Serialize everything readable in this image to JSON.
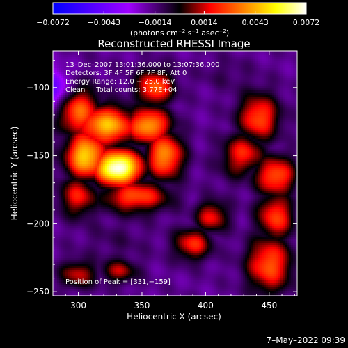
{
  "chart_data": {
    "type": "heatmap",
    "title": "Reconstructed RHESSI Image",
    "xlabel": "Heliocentric X (arcsec)",
    "ylabel": "Heliocentric Y (arcsec)",
    "xlim": [
      280,
      472
    ],
    "ylim": [
      -253,
      -73
    ],
    "x_ticks": [
      300,
      350,
      400,
      450
    ],
    "x_tick_labels": [
      "300",
      "350",
      "400",
      "450"
    ],
    "y_ticks": [
      -100,
      -150,
      -200,
      -250
    ],
    "y_tick_labels": [
      "−100",
      "−150",
      "−200",
      "−250"
    ],
    "colorbar": {
      "range": [
        -0.0072,
        0.0072
      ],
      "colors": [
        "#0000ff",
        "#a000ff",
        "#000000",
        "#ff0000",
        "#ff8000",
        "#ffff00",
        "#ffffff"
      ],
      "stops": [
        0,
        0.3,
        0.5,
        0.62,
        0.75,
        0.88,
        1
      ],
      "ticks": [
        -0.0072,
        -0.0043,
        -0.0014,
        0.0014,
        0.0043,
        0.0072
      ],
      "tick_labels": [
        "−0.0072",
        "−0.0043",
        "−0.0014",
        "0.0014",
        "0.0043",
        "0.0072"
      ],
      "units_parts": [
        "(photons cm",
        "−2",
        " s",
        "−1",
        " asec",
        "−2",
        ")"
      ]
    },
    "annotations": [
      "13–Dec–2007 13:01:36.000 to 13:07:36.000",
      "Detectors: 3F 4F 5F 6F 7F 8F, Att 0",
      "Energy Range: 12.0 − 25.0 keV",
      "Clean     Total counts: 3.77E+04"
    ],
    "peak_label": "Position of Peak = [331,−159]",
    "peak": [
      331,
      -159
    ],
    "background": {
      "value": -0.0016,
      "noise": 0.0004
    },
    "sources": [
      {
        "x": 331,
        "y": -159,
        "value": 0.0075,
        "sx": 13,
        "sy": 9
      },
      {
        "x": 306,
        "y": -150,
        "value": 0.005,
        "sx": 11,
        "sy": 12
      },
      {
        "x": 322,
        "y": -128,
        "value": 0.0045,
        "sx": 16,
        "sy": 10
      },
      {
        "x": 355,
        "y": -128,
        "value": 0.0042,
        "sx": 12,
        "sy": 9
      },
      {
        "x": 368,
        "y": -150,
        "value": 0.0038,
        "sx": 10,
        "sy": 12
      },
      {
        "x": 300,
        "y": -118,
        "value": 0.0032,
        "sx": 12,
        "sy": 12
      },
      {
        "x": 360,
        "y": -100,
        "value": 0.003,
        "sx": 10,
        "sy": 9
      },
      {
        "x": 345,
        "y": -180,
        "value": 0.0028,
        "sx": 18,
        "sy": 8
      },
      {
        "x": 300,
        "y": -180,
        "value": 0.002,
        "sx": 10,
        "sy": 10
      },
      {
        "x": 442,
        "y": -122,
        "value": 0.0028,
        "sx": 11,
        "sy": 12
      },
      {
        "x": 430,
        "y": -148,
        "value": 0.002,
        "sx": 11,
        "sy": 10
      },
      {
        "x": 455,
        "y": -165,
        "value": 0.003,
        "sx": 11,
        "sy": 10
      },
      {
        "x": 455,
        "y": -195,
        "value": 0.0025,
        "sx": 10,
        "sy": 12
      },
      {
        "x": 450,
        "y": -230,
        "value": 0.003,
        "sx": 12,
        "sy": 14
      },
      {
        "x": 390,
        "y": -215,
        "value": 0.0022,
        "sx": 10,
        "sy": 8
      },
      {
        "x": 405,
        "y": -195,
        "value": 0.0018,
        "sx": 9,
        "sy": 8
      },
      {
        "x": 300,
        "y": -237,
        "value": 0.0014,
        "sx": 10,
        "sy": 7
      },
      {
        "x": 332,
        "y": -235,
        "value": 0.0012,
        "sx": 10,
        "sy": 6
      },
      {
        "x": 280,
        "y": -102,
        "value": -0.005,
        "sx": 9,
        "sy": 11
      },
      {
        "x": 415,
        "y": -90,
        "value": -0.001,
        "sx": 14,
        "sy": 8
      },
      {
        "x": 420,
        "y": -162,
        "value": -0.001,
        "sx": 10,
        "sy": 9
      },
      {
        "x": 330,
        "y": -212,
        "value": -0.001,
        "sx": 18,
        "sy": 9
      }
    ]
  },
  "footer": {
    "timestamp": "7–May–2022 09:39"
  }
}
